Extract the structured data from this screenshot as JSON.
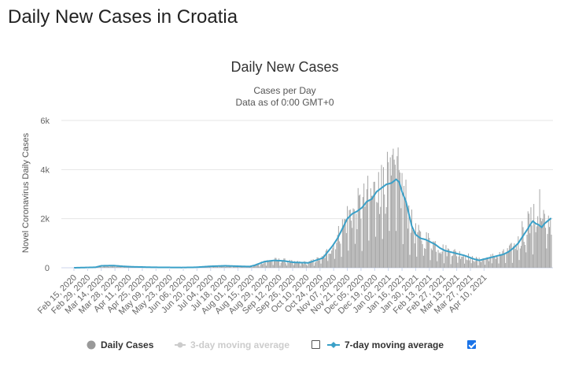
{
  "page": {
    "title": "Daily New Cases in Croatia"
  },
  "chart_data": {
    "type": "bar",
    "title": "Daily New Cases",
    "subtitle_line1": "Cases per Day",
    "subtitle_line2": "Data as of 0:00 GMT+0",
    "ylabel": "Novel Coronavirus Daily Cases",
    "ylim": [
      0,
      6000
    ],
    "y_ticks": [
      {
        "value": 0,
        "label": "0"
      },
      {
        "value": 2000,
        "label": "2k"
      },
      {
        "value": 4000,
        "label": "4k"
      },
      {
        "value": 6000,
        "label": "6k"
      }
    ],
    "x_tick_labels": [
      "Feb 15, 2020",
      "Feb 29, 2020",
      "Mar 14, 2020",
      "Mar 28, 2020",
      "Apr 11, 2020",
      "Apr 25, 2020",
      "May 09, 2020",
      "May 23, 2020",
      "Jun 06, 2020",
      "Jun 20, 2020",
      "Jul 04, 2020",
      "Jul 18, 2020",
      "Aug 01, 2020",
      "Aug 15, 2020",
      "Aug 29, 2020",
      "Sep 12, 2020",
      "Sep 26, 2020",
      "Oct 10, 2020",
      "Oct 24, 2020",
      "Nov 07, 2020",
      "Nov 21, 2020",
      "Dec 05, 2020",
      "Dec 19, 2020",
      "Jan 02, 2021",
      "Jan 16, 2021",
      "Jan 30, 2021",
      "Feb 13, 2021",
      "Feb 27, 2021",
      "Mar 13, 2021",
      "Mar 27, 2021",
      "Apr 10, 2021"
    ],
    "grid": true,
    "legend_position": "bottom",
    "series": [
      {
        "name": "Daily Cases",
        "color": "#999999",
        "visible": true
      },
      {
        "name": "3-day moving average",
        "color": "#cccccc",
        "visible": false
      },
      {
        "name": "7-day moving average",
        "color": "#3aa0c8",
        "visible": true
      }
    ],
    "avg7_profile": [
      [
        0,
        0
      ],
      [
        22,
        20
      ],
      [
        28,
        80
      ],
      [
        40,
        90
      ],
      [
        50,
        60
      ],
      [
        60,
        40
      ],
      [
        80,
        20
      ],
      [
        110,
        10
      ],
      [
        125,
        20
      ],
      [
        140,
        60
      ],
      [
        155,
        80
      ],
      [
        170,
        60
      ],
      [
        180,
        50
      ],
      [
        185,
        100
      ],
      [
        195,
        250
      ],
      [
        205,
        300
      ],
      [
        215,
        280
      ],
      [
        225,
        220
      ],
      [
        240,
        200
      ],
      [
        255,
        400
      ],
      [
        265,
        900
      ],
      [
        270,
        1200
      ],
      [
        275,
        1600
      ],
      [
        280,
        2000
      ],
      [
        285,
        2200
      ],
      [
        290,
        2300
      ],
      [
        295,
        2450
      ],
      [
        300,
        2700
      ],
      [
        305,
        2800
      ],
      [
        310,
        3100
      ],
      [
        315,
        3250
      ],
      [
        320,
        3400
      ],
      [
        325,
        3450
      ],
      [
        330,
        3600
      ],
      [
        333,
        3500
      ],
      [
        336,
        3100
      ],
      [
        340,
        2700
      ],
      [
        343,
        2200
      ],
      [
        346,
        1700
      ],
      [
        350,
        1350
      ],
      [
        355,
        1200
      ],
      [
        360,
        1150
      ],
      [
        365,
        1050
      ],
      [
        370,
        950
      ],
      [
        375,
        800
      ],
      [
        380,
        700
      ],
      [
        390,
        600
      ],
      [
        400,
        500
      ],
      [
        410,
        350
      ],
      [
        415,
        300
      ],
      [
        420,
        350
      ],
      [
        425,
        400
      ],
      [
        430,
        450
      ],
      [
        435,
        500
      ],
      [
        440,
        550
      ],
      [
        445,
        650
      ],
      [
        450,
        800
      ],
      [
        455,
        1000
      ],
      [
        460,
        1300
      ],
      [
        465,
        1600
      ],
      [
        468,
        1800
      ],
      [
        470,
        1900
      ],
      [
        473,
        1800
      ],
      [
        476,
        1750
      ],
      [
        479,
        1650
      ],
      [
        482,
        1800
      ],
      [
        485,
        1900
      ],
      [
        488,
        2000
      ]
    ],
    "daily_spikes": [
      [
        312,
        3900
      ],
      [
        317,
        4100
      ],
      [
        322,
        4300
      ],
      [
        324,
        4500
      ],
      [
        326,
        4600
      ],
      [
        329,
        4200
      ],
      [
        477,
        3200
      ],
      [
        471,
        2600
      ],
      [
        465,
        2300
      ],
      [
        459,
        1900
      ],
      [
        300,
        3200
      ],
      [
        307,
        3500
      ]
    ]
  },
  "legend": {
    "daily_cases": "Daily Cases",
    "avg3": "3-day moving average",
    "avg7": "7-day moving average",
    "avg3_checked": false,
    "avg7_checked": true
  }
}
